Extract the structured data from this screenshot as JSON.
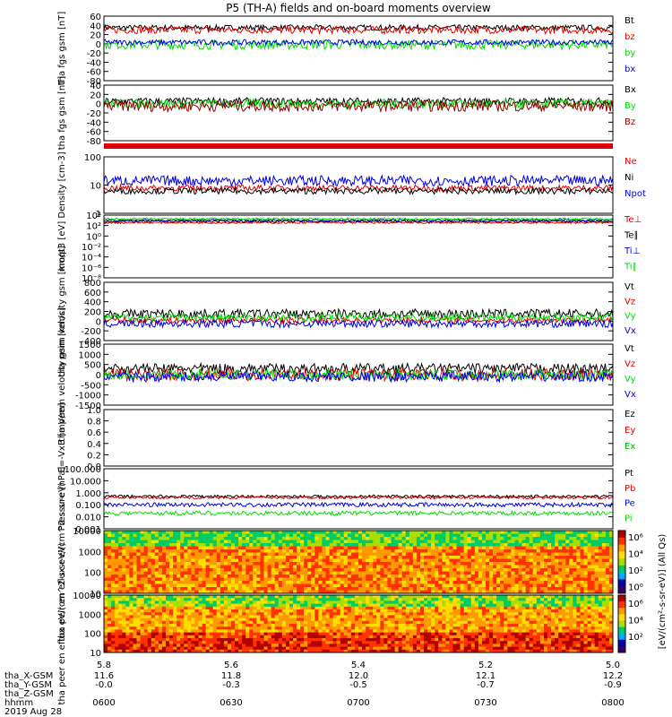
{
  "title": "P5 (TH-A) fields and on-board moments overview",
  "footer": {
    "rows": [
      {
        "label": "tha_X-GSM",
        "values": [
          "11.6",
          "11.8",
          "12.0",
          "12.1",
          "12.2"
        ]
      },
      {
        "label": "tha_Y-GSM",
        "values": [
          "-0.0",
          "-0.3",
          "-0.5",
          "-0.7",
          "-0.9"
        ]
      },
      {
        "label": "tha_Z-GSM",
        "values": [
          "",
          "",
          "",
          "",
          ""
        ]
      },
      {
        "label": "hhmm",
        "values": [
          "0600",
          "0630",
          "0700",
          "0730",
          "0800"
        ]
      }
    ],
    "date": "2019 Aug 28",
    "xtick_top": [
      "5.8",
      "5.6",
      "5.4",
      "5.2",
      "5.0"
    ]
  },
  "colorbar": {
    "ticks": [
      "10⁶",
      "10⁴",
      "10²",
      "10⁰",
      "10⁶",
      "10⁴",
      "10²"
    ],
    "label": "[eV/(cm²-s-sr-eV)] (All Qs)"
  },
  "colors": {
    "black": "#000000",
    "red": "#e00000",
    "green": "#00dd00",
    "blue": "#0000e0",
    "bg": "#ffffff"
  },
  "chart_data": [
    {
      "type": "line",
      "ylabel": "tha fgs gsm [nT]",
      "ylim": [
        -80,
        60
      ],
      "yticks": [
        "60",
        "40",
        "20",
        "0",
        "-20",
        "-40",
        "-60",
        "-80"
      ],
      "legend": [
        "Bt",
        "bz",
        "by",
        "bx"
      ],
      "series": [
        {
          "name": "Bt",
          "color": "black",
          "mean": 35,
          "amp": 6
        },
        {
          "name": "bz",
          "color": "red",
          "mean": 30,
          "amp": 8
        },
        {
          "name": "by",
          "color": "green",
          "mean": -2,
          "amp": 10
        },
        {
          "name": "bx",
          "color": "blue",
          "mean": 3,
          "amp": 6
        }
      ]
    },
    {
      "type": "line",
      "ylabel": "tha fgs gsm [nT]",
      "ylim": [
        -80,
        40
      ],
      "yticks": [
        "40",
        "20",
        "0",
        "-20",
        "-40",
        "-60",
        "-80"
      ],
      "legend": [
        "Bx",
        "By",
        "Bz"
      ],
      "series": [
        {
          "name": "Bx",
          "color": "black",
          "mean": 5,
          "amp": 8
        },
        {
          "name": "By",
          "color": "green",
          "mean": 0,
          "amp": 10
        },
        {
          "name": "Bz",
          "color": "#8b0000",
          "mean": -5,
          "amp": 12
        }
      ]
    },
    {
      "type": "line",
      "ylabel": "Density [cm-3]",
      "yscale": "log",
      "ylim": [
        0.1,
        200
      ],
      "yticks": [
        "100",
        "10",
        "1"
      ],
      "legend": [
        "Ne",
        "Ni",
        "Npot"
      ],
      "series": [
        {
          "name": "Ne",
          "color": "red",
          "mean": 3,
          "amp": 1.5
        },
        {
          "name": "Ni",
          "color": "black",
          "mean": 2,
          "amp": 1.5
        },
        {
          "name": "Npot",
          "color": "blue",
          "mean": 8,
          "amp": 2
        }
      ]
    },
    {
      "type": "line",
      "ylabel": "moqt3 [eV]",
      "yscale": "log",
      "yticks": [
        "10⁴",
        "10²",
        "10⁰",
        "10⁻²",
        "10⁻⁴",
        "10⁻⁶",
        "10⁻⁸"
      ],
      "legend": [
        "Te⊥",
        "Te∥",
        "Ti⊥",
        "Ti∥"
      ],
      "series": [
        {
          "name": "Te⊥",
          "color": "red",
          "mean": 1000,
          "amp": 1
        },
        {
          "name": "Te∥",
          "color": "black",
          "mean": 300,
          "amp": 1
        },
        {
          "name": "Ti⊥",
          "color": "blue",
          "mean": 3000,
          "amp": 1
        },
        {
          "name": "Ti∥",
          "color": "green",
          "mean": 2000,
          "amp": 1
        }
      ]
    },
    {
      "type": "line",
      "ylabel": "tha peim velocity gsm [km/s]",
      "ylim": [
        -400,
        800
      ],
      "yticks": [
        "800",
        "600",
        "400",
        "200",
        "0",
        "-200",
        "-400"
      ],
      "legend": [
        "Vt",
        "Vz",
        "Vy",
        "Vx"
      ],
      "series": [
        {
          "name": "Vt",
          "color": "black",
          "mean": 150,
          "amp": 100
        },
        {
          "name": "Vz",
          "color": "red",
          "mean": 20,
          "amp": 60
        },
        {
          "name": "Vy",
          "color": "green",
          "mean": 80,
          "amp": 80
        },
        {
          "name": "Vx",
          "color": "blue",
          "mean": -50,
          "amp": 80
        }
      ]
    },
    {
      "type": "line",
      "ylabel": "tha peem velocity gsm [km/s]",
      "ylim": [
        -1500,
        1500
      ],
      "yticks": [
        "1500",
        "1000",
        "500",
        "0",
        "-500",
        "-1000",
        "-1500"
      ],
      "legend": [
        "Vt",
        "Vz",
        "Vy",
        "Vx"
      ],
      "series": [
        {
          "name": "Vt",
          "color": "black",
          "mean": 300,
          "amp": 250
        },
        {
          "name": "Vz",
          "color": "red",
          "mean": 0,
          "amp": 300
        },
        {
          "name": "Vy",
          "color": "green",
          "mean": 0,
          "amp": 250
        },
        {
          "name": "Vx",
          "color": "blue",
          "mean": -100,
          "amp": 250
        }
      ]
    },
    {
      "type": "line",
      "ylabel": "E=-VxB [mV/m]",
      "ylim": [
        0.0,
        1.0
      ],
      "yticks": [
        "1.0",
        "0.8",
        "0.6",
        "0.4",
        "0.2",
        "0.0"
      ],
      "legend": [
        "Ez",
        "Ey",
        "Ex"
      ],
      "series": []
    },
    {
      "type": "line",
      "ylabel": "Pressure [nPa]",
      "yscale": "log",
      "ylim": [
        0.001,
        100
      ],
      "yticks": [
        "100.000",
        "10.000",
        "1.000",
        "0.100",
        "0.010",
        "0.001"
      ],
      "legend": [
        "Pt",
        "Pb",
        "Pe",
        "Pi"
      ],
      "series": [
        {
          "name": "Pt",
          "color": "black",
          "mean": 0.5,
          "amp": 1.3
        },
        {
          "name": "Pb",
          "color": "red",
          "mean": 0.4,
          "amp": 1.3
        },
        {
          "name": "Pe",
          "color": "blue",
          "mean": 0.1,
          "amp": 1.5
        },
        {
          "name": "Pi",
          "color": "green",
          "mean": 0.02,
          "amp": 1.5
        }
      ]
    },
    {
      "type": "heatmap",
      "ylabel": "tha peir en eflux eV/(cm^2-s-sr-eV)",
      "yscale": "log",
      "yticks": [
        "10000",
        "1000",
        "100",
        "10"
      ]
    },
    {
      "type": "heatmap",
      "ylabel": "tha peer en eflux eV/(cm^2-s-sr-eV)",
      "yscale": "log",
      "yticks": [
        "10000",
        "1000",
        "100",
        "10"
      ]
    }
  ]
}
